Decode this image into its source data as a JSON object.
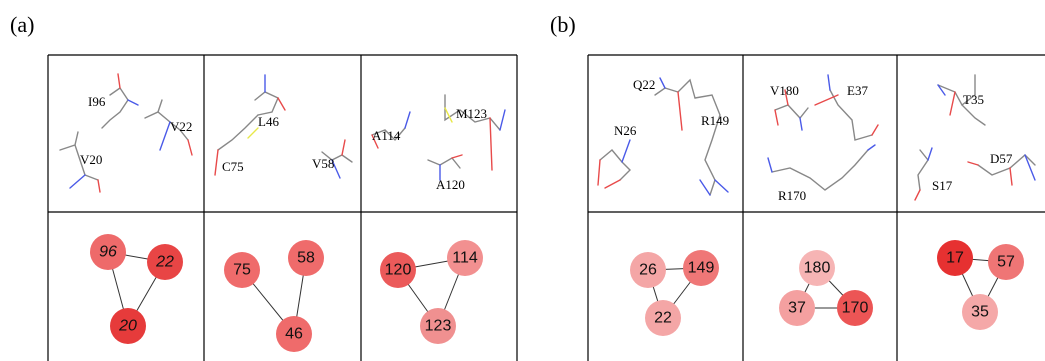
{
  "panels": [
    {
      "label": "(a)",
      "cells": [
        {
          "residues": [
            "I96",
            "V22",
            "V20"
          ],
          "nodes": [
            {
              "label": "96",
              "italic": true,
              "color": "#ee6a6a"
            },
            {
              "label": "22",
              "italic": true,
              "color": "#e84545"
            },
            {
              "label": "20",
              "italic": true,
              "color": "#e63b3b"
            }
          ],
          "edges": [
            [
              0,
              1
            ],
            [
              0,
              2
            ],
            [
              1,
              2
            ]
          ]
        },
        {
          "residues": [
            "L46",
            "C75",
            "V58"
          ],
          "nodes": [
            {
              "label": "75",
              "italic": false,
              "color": "#ef6b6b"
            },
            {
              "label": "58",
              "italic": false,
              "color": "#ef6b6b"
            },
            {
              "label": "46",
              "italic": false,
              "color": "#ef6b6b"
            }
          ],
          "edges": [
            [
              0,
              2
            ],
            [
              1,
              2
            ]
          ]
        },
        {
          "residues": [
            "M123",
            "A114",
            "A120"
          ],
          "nodes": [
            {
              "label": "120",
              "italic": false,
              "color": "#eb5a5a"
            },
            {
              "label": "114",
              "italic": false,
              "color": "#f29090"
            },
            {
              "label": "123",
              "italic": false,
              "color": "#f09090"
            }
          ],
          "edges": [
            [
              0,
              1
            ],
            [
              0,
              2
            ],
            [
              1,
              2
            ]
          ]
        }
      ]
    },
    {
      "label": "(b)",
      "cells": [
        {
          "residues": [
            "Q22",
            "N26",
            "R149"
          ],
          "nodes": [
            {
              "label": "26",
              "italic": false,
              "color": "#f4a6a6"
            },
            {
              "label": "149",
              "italic": false,
              "color": "#ef7777"
            },
            {
              "label": "22",
              "italic": false,
              "color": "#f4a6a6"
            }
          ],
          "edges": [
            [
              0,
              1
            ],
            [
              0,
              2
            ],
            [
              1,
              2
            ]
          ]
        },
        {
          "residues": [
            "V180",
            "E37",
            "R170"
          ],
          "nodes": [
            {
              "label": "180",
              "italic": false,
              "color": "#f6b4b4"
            },
            {
              "label": "37",
              "italic": false,
              "color": "#f4a0a0"
            },
            {
              "label": "170",
              "italic": false,
              "color": "#ec5555"
            }
          ],
          "edges": [
            [
              0,
              1
            ],
            [
              0,
              2
            ],
            [
              1,
              2
            ]
          ]
        },
        {
          "residues": [
            "T35",
            "D57",
            "S17"
          ],
          "nodes": [
            {
              "label": "17",
              "italic": false,
              "color": "#e63131"
            },
            {
              "label": "57",
              "italic": false,
              "color": "#ef7575"
            },
            {
              "label": "35",
              "italic": false,
              "color": "#f5a8a8"
            }
          ],
          "edges": [
            [
              0,
              1
            ],
            [
              0,
              2
            ],
            [
              1,
              2
            ]
          ]
        }
      ]
    }
  ],
  "colors": {
    "oxygen": "#e84a4a",
    "nitrogen": "#4a5ae8",
    "sulfur": "#e8e84a",
    "carbon": "#888888"
  }
}
